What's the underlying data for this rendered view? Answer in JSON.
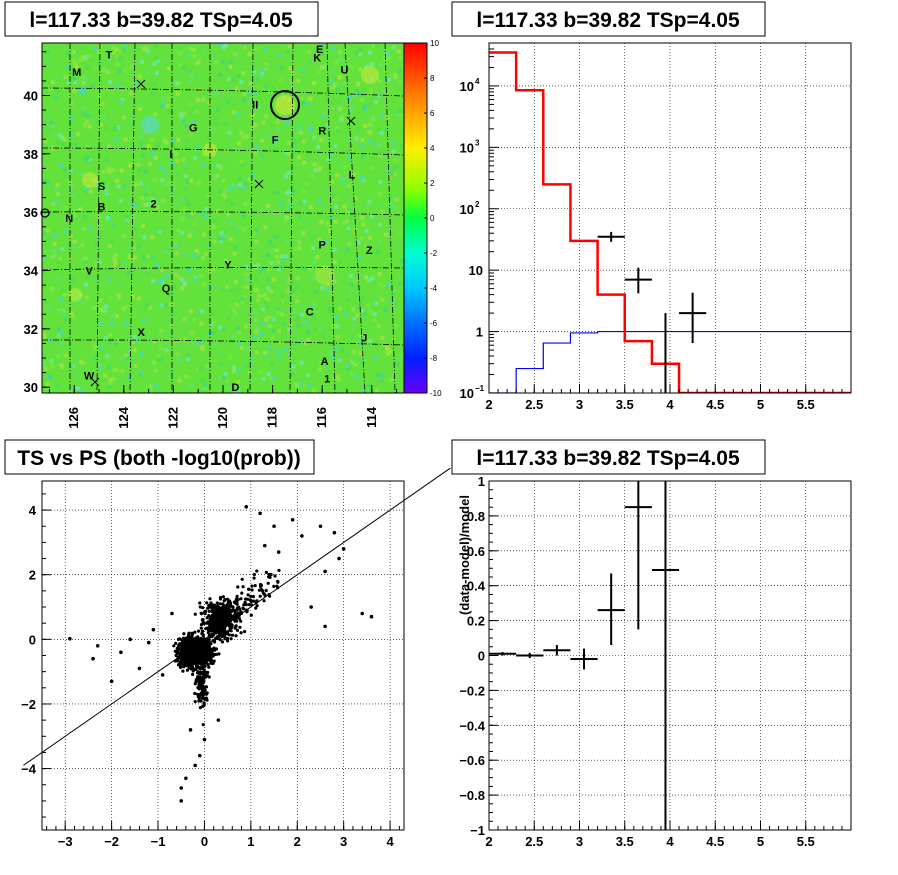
{
  "panels": {
    "map_title": "l=117.33 b=39.82 TSp=4.05",
    "spectrum_title": "l=117.33 b=39.82 TSp=4.05",
    "scatter_title": "TS vs PS (both -log10(prob))",
    "residual_title": "l=117.33 b=39.82 TSp=4.05"
  },
  "chart_data": [
    {
      "type": "heatmap",
      "title": "l=117.33 b=39.82 TSp=4.05",
      "x_tick_labels": [
        "126",
        "124",
        "122",
        "120",
        "118",
        "116",
        "114"
      ],
      "x_ticks": [
        126,
        124,
        122,
        120,
        118,
        116,
        114
      ],
      "xlim": [
        127.3,
        112.7
      ],
      "y_tick_labels": [
        "30",
        "32",
        "34",
        "36",
        "38",
        "40"
      ],
      "y_ticks": [
        30,
        32,
        34,
        36,
        38,
        40
      ],
      "ylim": [
        29.8,
        41.8
      ],
      "colorbar_labels": [
        "10",
        "8",
        "6",
        "4",
        "2",
        "0",
        "-2",
        "-4",
        "-6",
        "-8",
        "-10"
      ],
      "colorbar_values": [
        10,
        8,
        6,
        4,
        2,
        0,
        -2,
        -4,
        -6,
        -8,
        -10
      ],
      "zlim": [
        -10,
        10
      ],
      "source_labels": [
        {
          "text": "T",
          "l": 124.6,
          "b": 41.4
        },
        {
          "text": "E",
          "l": 116.1,
          "b": 41.6
        },
        {
          "text": "K",
          "l": 116.2,
          "b": 41.3
        },
        {
          "text": "M",
          "l": 125.9,
          "b": 40.8
        },
        {
          "text": "U",
          "l": 115.1,
          "b": 40.9
        },
        {
          "text": "II",
          "l": 118.7,
          "b": 39.7
        },
        {
          "text": "G",
          "l": 121.2,
          "b": 38.9
        },
        {
          "text": "R",
          "l": 116.0,
          "b": 38.8
        },
        {
          "text": "F",
          "l": 117.9,
          "b": 38.5
        },
        {
          "text": "I",
          "l": 122.1,
          "b": 38.0
        },
        {
          "text": "L",
          "l": 114.8,
          "b": 37.3
        },
        {
          "text": "S",
          "l": 124.9,
          "b": 36.9
        },
        {
          "text": "B",
          "l": 124.9,
          "b": 36.2
        },
        {
          "text": "2",
          "l": 122.8,
          "b": 36.3
        },
        {
          "text": "N",
          "l": 126.2,
          "b": 35.8
        },
        {
          "text": "P",
          "l": 116.0,
          "b": 34.9
        },
        {
          "text": "Z",
          "l": 114.1,
          "b": 34.7
        },
        {
          "text": "Y",
          "l": 119.8,
          "b": 34.2
        },
        {
          "text": "V",
          "l": 125.4,
          "b": 34.0
        },
        {
          "text": "Q",
          "l": 122.3,
          "b": 33.4
        },
        {
          "text": "C",
          "l": 116.5,
          "b": 32.6
        },
        {
          "text": "X",
          "l": 123.3,
          "b": 31.9
        },
        {
          "text": "J",
          "l": 114.3,
          "b": 31.7
        },
        {
          "text": "A",
          "l": 115.9,
          "b": 30.9
        },
        {
          "text": "1",
          "l": 115.8,
          "b": 30.3
        },
        {
          "text": "W",
          "l": 125.4,
          "b": 30.4
        },
        {
          "text": "D",
          "l": 119.5,
          "b": 30.0
        }
      ]
    },
    {
      "type": "line",
      "title": "l=117.33 b=39.82 TSp=4.05",
      "x_tick_labels": [
        "2",
        "2.5",
        "3",
        "3.5",
        "4",
        "4.5",
        "5",
        "5.5"
      ],
      "x_ticks": [
        2,
        2.5,
        3,
        3.5,
        4,
        4.5,
        5,
        5.5
      ],
      "xlim": [
        2,
        6
      ],
      "y_log": true,
      "ylim": [
        0.1,
        50000
      ],
      "y_tick_labels": [
        {
          "base": "10",
          "exp": "−1"
        },
        {
          "base": "1",
          "exp": ""
        },
        {
          "base": "10",
          "exp": ""
        },
        {
          "base": "10",
          "exp": "2"
        },
        {
          "base": "10",
          "exp": "3"
        },
        {
          "base": "10",
          "exp": "4"
        }
      ],
      "y_ticks": [
        0.1,
        1,
        10,
        100,
        1000,
        10000
      ],
      "grid": true,
      "series": [
        {
          "kind": "model-histogram",
          "color": "#ff0000",
          "edges": [
            2,
            2.3,
            2.6,
            2.9,
            3.2,
            3.5,
            3.8,
            4.1,
            6
          ],
          "values": [
            35000,
            8500,
            250,
            30,
            4,
            0.7,
            0.3,
            0.1
          ]
        },
        {
          "kind": "background-histogram",
          "color": "#0000ff",
          "edges": [
            2,
            2.3,
            2.6,
            2.9,
            3.2,
            6
          ],
          "values": [
            0.1,
            0.25,
            0.65,
            0.95,
            1.0
          ]
        },
        {
          "kind": "data-points",
          "color": "#000000",
          "points": [
            {
              "x": 3.35,
              "xerr": 0.15,
              "y": 35,
              "ylo": 29,
              "yhi": 42
            },
            {
              "x": 3.65,
              "xerr": 0.15,
              "y": 7,
              "ylo": 4.2,
              "yhi": 11
            },
            {
              "x": 3.95,
              "xerr": 0.0,
              "y": 0.9,
              "ylo": 0.1,
              "yhi": 2.0
            },
            {
              "x": 4.25,
              "xerr": 0.15,
              "y": 2,
              "ylo": 0.65,
              "yhi": 4.3
            }
          ]
        }
      ]
    },
    {
      "type": "scatter",
      "title": "TS vs PS (both -log10(prob))",
      "x_tick_labels": [
        "−3",
        "−2",
        "−1",
        "0",
        "1",
        "2",
        "3",
        "4"
      ],
      "x_ticks": [
        -3,
        -2,
        -1,
        0,
        1,
        2,
        3,
        4
      ],
      "xlim": [
        -3.5,
        4.3
      ],
      "y_tick_labels": [
        "−4",
        "−2",
        "0",
        "2",
        "4"
      ],
      "y_ticks": [
        -4,
        -2,
        0,
        2,
        4
      ],
      "ylim": [
        -5.9,
        4.9
      ],
      "grid": true,
      "reference_line": {
        "slope": 1,
        "intercept": 0
      },
      "outliers": [
        [
          -2.9,
          0.02
        ],
        [
          -2.3,
          -0.2
        ],
        [
          -2.4,
          -0.6
        ],
        [
          -2.0,
          -1.3
        ],
        [
          -1.8,
          -0.4
        ],
        [
          -1.6,
          0.0
        ],
        [
          -1.4,
          -0.9
        ],
        [
          -1.2,
          -0.1
        ],
        [
          -1.1,
          0.3
        ],
        [
          -0.9,
          -1.1
        ],
        [
          -0.5,
          -4.6
        ],
        [
          -0.5,
          -5.0
        ],
        [
          -0.4,
          -4.3
        ],
        [
          -0.2,
          -3.9
        ],
        [
          -0.1,
          -3.6
        ],
        [
          0.0,
          -3.1
        ],
        [
          0.9,
          4.1
        ],
        [
          1.2,
          3.9
        ],
        [
          1.5,
          3.5
        ],
        [
          1.9,
          3.7
        ],
        [
          2.5,
          3.5
        ],
        [
          2.8,
          3.3
        ],
        [
          3.0,
          2.8
        ],
        [
          3.4,
          0.8
        ],
        [
          3.6,
          0.7
        ],
        [
          2.6,
          2.1
        ],
        [
          2.9,
          2.5
        ],
        [
          2.3,
          1.0
        ],
        [
          2.6,
          0.4
        ],
        [
          1.3,
          2.9
        ],
        [
          1.6,
          2.7
        ],
        [
          2.1,
          3.2
        ],
        [
          -0.7,
          0.8
        ],
        [
          0.3,
          -2.5
        ],
        [
          -0.3,
          -2.8
        ]
      ]
    },
    {
      "type": "scatter",
      "title": "l=117.33 b=39.82 TSp=4.05",
      "ylabel": "(data-model)/model",
      "x_tick_labels": [
        "2",
        "2.5",
        "3",
        "3.5",
        "4",
        "4.5",
        "5",
        "5.5"
      ],
      "x_ticks": [
        2,
        2.5,
        3,
        3.5,
        4,
        4.5,
        5,
        5.5
      ],
      "xlim": [
        2,
        6
      ],
      "y_tick_labels": [
        "−1",
        "−0.8",
        "−0.6",
        "−0.4",
        "−0.2",
        "0",
        "0.2",
        "0.4",
        "0.6",
        "0.8",
        "1"
      ],
      "y_ticks": [
        -1,
        -0.8,
        -0.6,
        -0.4,
        -0.2,
        0,
        0.2,
        0.4,
        0.6,
        0.8,
        1
      ],
      "ylim": [
        -1,
        1
      ],
      "grid": true,
      "points": [
        {
          "x": 2.15,
          "xerr": 0.15,
          "y": 0.01,
          "ylo": 0.0,
          "yhi": 0.02
        },
        {
          "x": 2.45,
          "xerr": 0.15,
          "y": 0.0,
          "ylo": -0.015,
          "yhi": 0.015
        },
        {
          "x": 2.75,
          "xerr": 0.15,
          "y": 0.03,
          "ylo": 0.0,
          "yhi": 0.06
        },
        {
          "x": 3.05,
          "xerr": 0.15,
          "y": -0.02,
          "ylo": -0.08,
          "yhi": 0.04
        },
        {
          "x": 3.35,
          "xerr": 0.15,
          "y": 0.26,
          "ylo": 0.06,
          "yhi": 0.47
        },
        {
          "x": 3.65,
          "xerr": 0.15,
          "y": 0.85,
          "ylo": 0.15,
          "yhi": 1.0
        },
        {
          "x": 3.95,
          "xerr": 0.15,
          "y": 0.49,
          "ylo": -1.0,
          "yhi": 1.0
        }
      ]
    }
  ]
}
